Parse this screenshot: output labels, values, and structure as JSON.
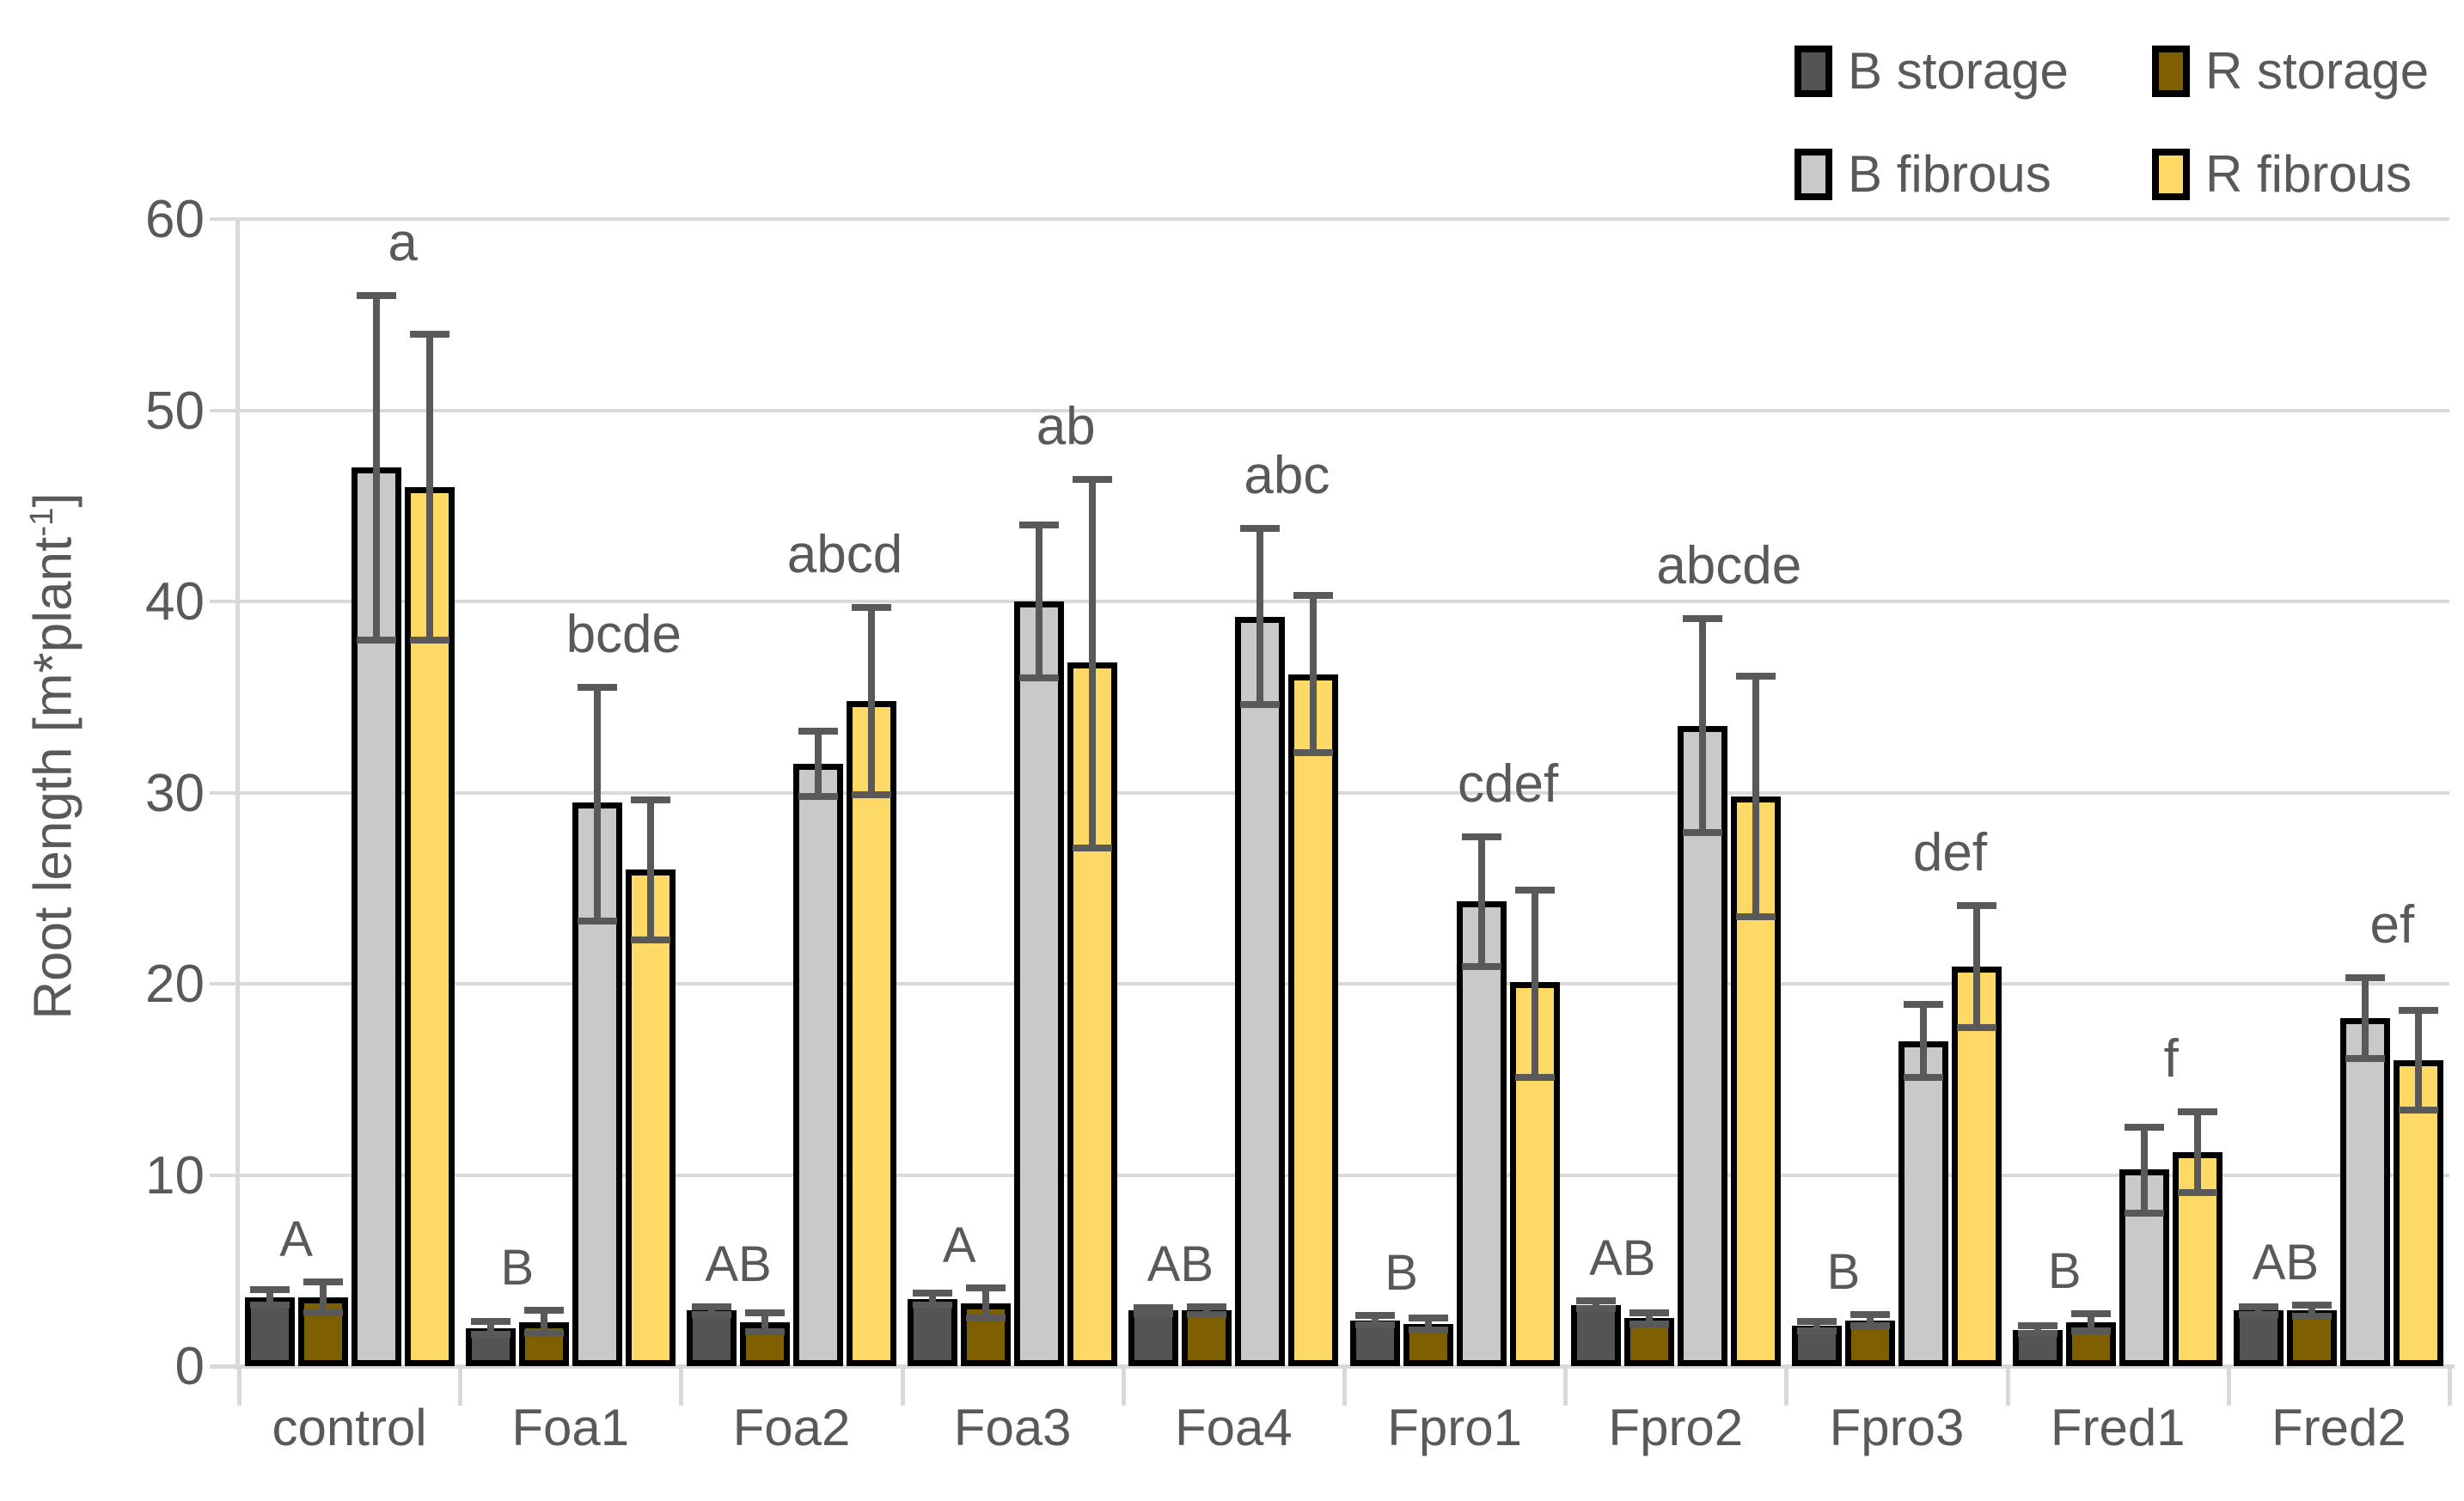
{
  "chart_data": {
    "type": "bar",
    "title": "",
    "xlabel": "",
    "ylabel_prefix": "Root length [m*plant",
    "ylabel_sup": "-1",
    "ylabel_suffix": "]",
    "ylim": [
      0,
      60
    ],
    "yticks": [
      0,
      10,
      20,
      30,
      40,
      50,
      60
    ],
    "grid": "horizontal",
    "legend_position": "top-right",
    "categories": [
      "control",
      "Foa1",
      "Foa2",
      "Foa3",
      "Foa4",
      "Fpro1",
      "Fpro2",
      "Fpro3",
      "Fred1",
      "Fred2"
    ],
    "series": [
      {
        "name": "B storage",
        "color": "#545454",
        "values": [
          3.6,
          2.0,
          2.9,
          3.5,
          2.9,
          2.4,
          3.2,
          2.1,
          1.9,
          2.9
        ],
        "err_up": [
          0.4,
          0.35,
          0.2,
          0.3,
          0.15,
          0.25,
          0.2,
          0.25,
          0.2,
          0.2
        ],
        "err_down": [
          0.4,
          0.35,
          0.2,
          0.3,
          0.15,
          0.25,
          0.2,
          0.25,
          0.2,
          0.2
        ]
      },
      {
        "name": "R storage",
        "color": "#7f6000",
        "values": [
          3.6,
          2.3,
          2.3,
          3.3,
          2.9,
          2.2,
          2.5,
          2.4,
          2.3,
          2.9
        ],
        "err_up": [
          0.8,
          0.6,
          0.5,
          0.8,
          0.2,
          0.3,
          0.3,
          0.3,
          0.45,
          0.3
        ],
        "err_down": [
          0.8,
          0.6,
          0.5,
          0.8,
          0.2,
          0.3,
          0.3,
          0.3,
          0.45,
          0.3
        ]
      },
      {
        "name": "B fibrous",
        "color": "#c9c9c9",
        "values": [
          47.0,
          29.5,
          31.5,
          40.0,
          39.2,
          24.3,
          33.5,
          17.0,
          10.3,
          18.2
        ],
        "err_up": [
          9.0,
          6.0,
          1.7,
          4.0,
          4.6,
          3.4,
          5.6,
          1.9,
          2.2,
          2.1
        ],
        "err_down": [
          9.0,
          6.2,
          1.7,
          4.0,
          4.6,
          3.4,
          5.6,
          1.9,
          2.3,
          2.1
        ]
      },
      {
        "name": "R fibrous",
        "color": "#ffd966",
        "values": [
          46.0,
          26.0,
          34.8,
          36.8,
          36.2,
          20.1,
          29.8,
          20.9,
          11.2,
          16.0
        ],
        "err_up": [
          8.0,
          3.6,
          4.9,
          9.6,
          4.1,
          4.8,
          6.3,
          3.2,
          2.1,
          2.6
        ],
        "err_down": [
          8.0,
          3.7,
          4.9,
          9.7,
          4.1,
          5.0,
          6.3,
          3.2,
          2.1,
          2.6
        ]
      }
    ],
    "group_letters": [
      "A",
      "B",
      "AB",
      "A",
      "AB",
      "B",
      "AB",
      "B",
      "B",
      "AB"
    ],
    "sig_letters": [
      "a",
      "bcde",
      "abcd",
      "ab",
      "abc",
      "cdef",
      "abcde",
      "def",
      "f",
      "ef"
    ],
    "style_colors": {
      "error_bar": "#595959",
      "gridline": "#d9d9d9",
      "axis": "#d9d9d9",
      "text": "#595959",
      "bar_border": "#000000"
    }
  }
}
